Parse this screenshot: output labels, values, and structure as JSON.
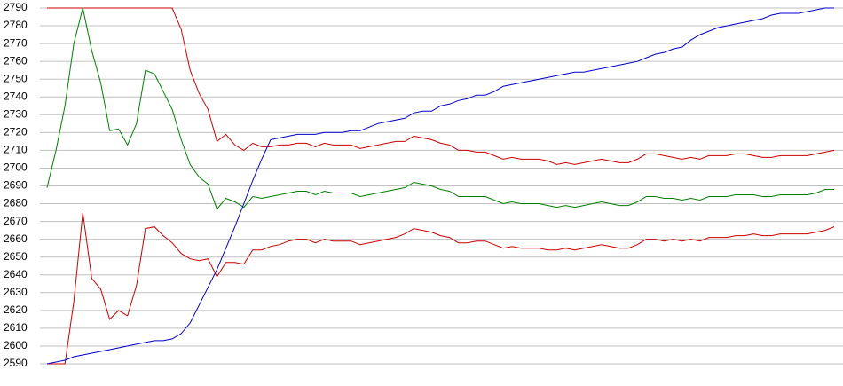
{
  "chart_data": {
    "type": "line",
    "ylim": [
      2590,
      2790
    ],
    "yticks": [
      2590,
      2600,
      2610,
      2620,
      2630,
      2640,
      2650,
      2660,
      2670,
      2680,
      2690,
      2700,
      2710,
      2720,
      2730,
      2740,
      2750,
      2760,
      2770,
      2780,
      2790
    ],
    "grid": true,
    "series": [
      {
        "color": "#cc0000",
        "values": [
          2790,
          2790,
          2790,
          2790,
          2790,
          2790,
          2790,
          2790,
          2790,
          2790,
          2790,
          2790,
          2790,
          2790,
          2790,
          2778,
          2755,
          2742,
          2733,
          2715,
          2719,
          2713,
          2710,
          2714,
          2712,
          2712,
          2713,
          2713,
          2714,
          2714,
          2712,
          2714,
          2713,
          2713,
          2713,
          2711,
          2712,
          2713,
          2714,
          2715,
          2715,
          2718,
          2717,
          2716,
          2714,
          2713,
          2710,
          2710,
          2709,
          2709,
          2707,
          2705,
          2706,
          2705,
          2705,
          2705,
          2704,
          2702,
          2703,
          2702,
          2703,
          2704,
          2705,
          2704,
          2703,
          2703,
          2705,
          2708,
          2708,
          2707,
          2706,
          2705,
          2706,
          2705,
          2707,
          2707,
          2707,
          2708,
          2708,
          2707,
          2706,
          2706,
          2707,
          2707,
          2707,
          2707,
          2708,
          2709,
          2710
        ]
      },
      {
        "color": "#008000",
        "values": [
          2689,
          2710,
          2735,
          2770,
          2790,
          2766,
          2748,
          2721,
          2722,
          2713,
          2725,
          2755,
          2753,
          2743,
          2733,
          2716,
          2702,
          2695,
          2691,
          2677,
          2683,
          2681,
          2678,
          2684,
          2683,
          2684,
          2685,
          2686,
          2687,
          2687,
          2685,
          2687,
          2686,
          2686,
          2686,
          2684,
          2685,
          2686,
          2687,
          2688,
          2689,
          2692,
          2691,
          2690,
          2688,
          2687,
          2684,
          2684,
          2684,
          2684,
          2682,
          2680,
          2681,
          2680,
          2680,
          2680,
          2679,
          2678,
          2679,
          2678,
          2679,
          2680,
          2681,
          2680,
          2679,
          2679,
          2681,
          2684,
          2684,
          2683,
          2683,
          2682,
          2683,
          2682,
          2684,
          2684,
          2684,
          2685,
          2685,
          2685,
          2684,
          2684,
          2685,
          2685,
          2685,
          2685,
          2686,
          2688,
          2688
        ]
      },
      {
        "color": "#cc0000",
        "values": [
          2590,
          2590,
          2590,
          2625,
          2675,
          2638,
          2632,
          2615,
          2620,
          2617,
          2634,
          2666,
          2667,
          2662,
          2658,
          2652,
          2649,
          2648,
          2649,
          2639,
          2647,
          2647,
          2646,
          2654,
          2654,
          2656,
          2657,
          2659,
          2660,
          2660,
          2658,
          2660,
          2659,
          2659,
          2659,
          2657,
          2658,
          2659,
          2660,
          2661,
          2663,
          2666,
          2665,
          2664,
          2662,
          2661,
          2658,
          2658,
          2659,
          2659,
          2657,
          2655,
          2656,
          2655,
          2655,
          2655,
          2654,
          2654,
          2655,
          2654,
          2655,
          2656,
          2657,
          2656,
          2655,
          2655,
          2657,
          2660,
          2660,
          2659,
          2660,
          2659,
          2660,
          2659,
          2661,
          2661,
          2661,
          2662,
          2662,
          2663,
          2662,
          2662,
          2663,
          2663,
          2663,
          2663,
          2664,
          2665,
          2667
        ]
      },
      {
        "color": "#0000cc",
        "values": [
          2590,
          2591,
          2592,
          2594,
          2595,
          2596,
          2597,
          2598,
          2599,
          2600,
          2601,
          2602,
          2603,
          2603,
          2604,
          2607,
          2613,
          2623,
          2633,
          2643,
          2655,
          2667,
          2680,
          2693,
          2705,
          2716,
          2717,
          2718,
          2719,
          2719,
          2719,
          2720,
          2720,
          2720,
          2721,
          2721,
          2723,
          2725,
          2726,
          2727,
          2728,
          2731,
          2732,
          2732,
          2735,
          2736,
          2738,
          2739,
          2741,
          2741,
          2743,
          2746,
          2747,
          2748,
          2749,
          2750,
          2751,
          2752,
          2753,
          2754,
          2754,
          2755,
          2756,
          2757,
          2758,
          2759,
          2760,
          2762,
          2764,
          2765,
          2767,
          2768,
          2772,
          2775,
          2777,
          2779,
          2780,
          2781,
          2782,
          2783,
          2784,
          2786,
          2787,
          2787,
          2787,
          2788,
          2789,
          2790,
          2790
        ]
      }
    ]
  }
}
